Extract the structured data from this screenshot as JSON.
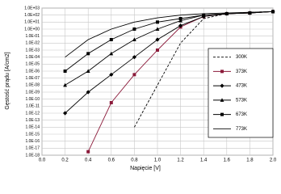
{
  "chart_data": {
    "type": "line",
    "x_label": "Napięcie [V]",
    "y_label": "Gęstość prądu [A/cm2]",
    "log_scale": true,
    "grid": true,
    "legend_position": "right",
    "x": [
      0.2,
      0.4,
      0.6,
      0.8,
      1.0,
      1.2,
      1.4,
      1.6,
      1.8,
      2.0
    ],
    "xlim": [
      0,
      2
    ],
    "xticks": [
      {
        "value": 0,
        "label": "0.0"
      },
      0.2,
      0.4,
      0.6,
      0.8,
      {
        "value": 1,
        "label": "1.0"
      },
      1.2,
      1.4,
      1.6,
      1.8,
      {
        "value": 2,
        "label": "2.0"
      }
    ],
    "ylim": [
      1e-18,
      1000
    ],
    "yticks": [
      {
        "value": 1000,
        "label": "1.0E+03"
      },
      {
        "value": 100,
        "label": "1.0E+02"
      },
      {
        "value": 10,
        "label": "1.0E+01"
      },
      {
        "value": 1,
        "label": "1.0E+00"
      },
      {
        "value": 0.1,
        "label": "1.0E-01"
      },
      {
        "value": 0.01,
        "label": "1.0E-02"
      },
      {
        "value": 0.001,
        "label": "1.0E-03"
      },
      {
        "value": 0.0001,
        "label": "1.0E-04"
      },
      {
        "value": 1e-05,
        "label": "1.0E-05"
      },
      {
        "value": 1e-06,
        "label": "1.0E-06"
      },
      {
        "value": 1e-07,
        "label": "1.0E-07"
      },
      {
        "value": 1e-08,
        "label": "1.0E-08"
      },
      {
        "value": 1e-09,
        "label": "1.0E-09"
      },
      {
        "value": 1e-10,
        "label": "1.0E-10"
      },
      {
        "value": 1e-11,
        "label": "1.0E-11"
      },
      {
        "value": 1e-12,
        "label": "1.0E-12"
      },
      {
        "value": 1e-13,
        "label": "1.0E-13"
      },
      {
        "value": 1e-14,
        "label": "1.0E-14"
      },
      {
        "value": 1e-15,
        "label": "1.0E-15"
      },
      {
        "value": 1e-16,
        "label": "1.0E-16"
      },
      {
        "value": 1e-17,
        "label": "1.0E-17"
      },
      {
        "value": 1e-18,
        "label": "1.0E-18"
      }
    ],
    "series": [
      {
        "name": "300K",
        "color": "#000000",
        "dash": true,
        "marker": "none",
        "values": [
          null,
          null,
          null,
          1e-14,
          1e-08,
          0.01,
          31.6,
          158,
          251,
          316
        ]
      },
      {
        "name": "373K",
        "color": "#8b1a3a",
        "marker": "square",
        "values": [
          null,
          3.16e-18,
          3.16e-11,
          3.16e-07,
          0.001,
          2,
          63,
          158,
          200,
          316
        ]
      },
      {
        "name": "473K",
        "color": "#000000",
        "marker": "diamond",
        "values": [
          1e-12,
          1e-09,
          3.16e-07,
          0.0001,
          0.0316,
          3.16,
          63,
          158,
          200,
          316
        ]
      },
      {
        "name": "573K",
        "color": "#000000",
        "marker": "triangle",
        "values": [
          1e-08,
          1e-06,
          0.000316,
          0.0316,
          1,
          15.8,
          100,
          158,
          200,
          316
        ]
      },
      {
        "name": "673K",
        "color": "#000000",
        "marker": "square",
        "values": [
          1e-06,
          0.000316,
          0.0316,
          1,
          10,
          31.6,
          100,
          158,
          200,
          316
        ]
      },
      {
        "name": "773K",
        "color": "#000000",
        "marker": "none",
        "values": [
          0.0001,
          0.0316,
          1,
          10,
          40,
          100,
          158,
          200,
          251,
          316
        ]
      }
    ]
  }
}
